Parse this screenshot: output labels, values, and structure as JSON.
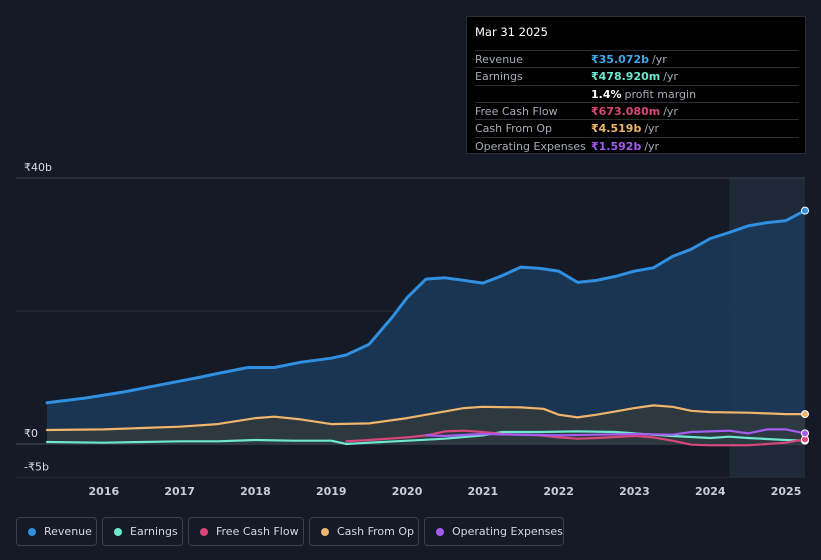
{
  "tooltip": {
    "date": "Mar 31 2025",
    "rows": [
      {
        "label": "Revenue",
        "value": "₹35.072b",
        "unit": "/yr",
        "color": "#3fa7ec"
      },
      {
        "label": "Earnings",
        "value": "₹478.920m",
        "unit": "/yr",
        "color": "#6ee7d0"
      },
      {
        "label": "",
        "value": "1.4%",
        "unit": "profit margin",
        "color": "#ffffff"
      },
      {
        "label": "Free Cash Flow",
        "value": "₹673.080m",
        "unit": "/yr",
        "color": "#d9467a"
      },
      {
        "label": "Cash From Op",
        "value": "₹4.519b",
        "unit": "/yr",
        "color": "#f0b56b"
      },
      {
        "label": "Operating Expenses",
        "value": "₹1.592b",
        "unit": "/yr",
        "color": "#a55cf0"
      }
    ]
  },
  "legend": [
    {
      "label": "Revenue",
      "color": "#2f8fe0"
    },
    {
      "label": "Earnings",
      "color": "#6ee7d0"
    },
    {
      "label": "Free Cash Flow",
      "color": "#d9467a"
    },
    {
      "label": "Cash From Op",
      "color": "#f0b56b"
    },
    {
      "label": "Operating Expenses",
      "color": "#a55cf0"
    }
  ],
  "chart_data": {
    "type": "line",
    "title": "",
    "unit": "₹ billions",
    "ylim": [
      -5,
      40
    ],
    "y_tick_labels": [
      "₹40b",
      "₹0",
      "-₹5b"
    ],
    "x_tick_labels": [
      "2016",
      "2017",
      "2018",
      "2019",
      "2020",
      "2021",
      "2022",
      "2023",
      "2024",
      "2025"
    ],
    "xlim": [
      2015.25,
      2025.25
    ],
    "highlight_from": 2024.25,
    "series": [
      {
        "name": "Revenue",
        "color": "#2f8fe0",
        "fill": true,
        "x": [
          2015.25,
          2015.75,
          2016.25,
          2016.75,
          2017.25,
          2017.5,
          2017.9,
          2018.25,
          2018.6,
          2019.0,
          2019.2,
          2019.5,
          2019.8,
          2020.0,
          2020.25,
          2020.5,
          2020.75,
          2021.0,
          2021.25,
          2021.5,
          2021.75,
          2022.0,
          2022.25,
          2022.5,
          2022.75,
          2023.0,
          2023.25,
          2023.5,
          2023.75,
          2024.0,
          2024.25,
          2024.5,
          2024.75,
          2025.0,
          2025.25
        ],
        "values": [
          6.2,
          6.9,
          7.8,
          8.9,
          10.0,
          10.6,
          11.5,
          11.5,
          12.3,
          12.9,
          13.4,
          15.0,
          19.0,
          22.0,
          24.8,
          25.0,
          24.6,
          24.2,
          25.3,
          26.6,
          26.4,
          26.0,
          24.3,
          24.6,
          25.2,
          26.0,
          26.5,
          28.2,
          29.3,
          30.9,
          31.8,
          32.8,
          33.3,
          33.6,
          35.1
        ]
      },
      {
        "name": "Cash From Op",
        "color": "#f0b56b",
        "fill": true,
        "x": [
          2015.25,
          2016.0,
          2016.5,
          2017.0,
          2017.5,
          2018.0,
          2018.25,
          2018.6,
          2019.0,
          2019.5,
          2020.0,
          2020.5,
          2020.75,
          2021.0,
          2021.5,
          2021.8,
          2022.0,
          2022.25,
          2022.5,
          2022.75,
          2023.0,
          2023.25,
          2023.5,
          2023.75,
          2024.0,
          2024.5,
          2024.75,
          2025.0,
          2025.25
        ],
        "values": [
          2.1,
          2.2,
          2.4,
          2.6,
          3.0,
          3.9,
          4.1,
          3.7,
          3.0,
          3.1,
          3.9,
          4.9,
          5.4,
          5.6,
          5.5,
          5.3,
          4.4,
          4.0,
          4.4,
          4.9,
          5.4,
          5.8,
          5.6,
          5.0,
          4.8,
          4.7,
          4.6,
          4.5,
          4.5
        ]
      },
      {
        "name": "Earnings",
        "color": "#6ee7d0",
        "fill": false,
        "x": [
          2015.25,
          2016.0,
          2016.5,
          2017.0,
          2017.5,
          2018.0,
          2018.5,
          2019.0,
          2019.2,
          2019.5,
          2020.0,
          2020.5,
          2021.0,
          2021.25,
          2021.75,
          2022.25,
          2022.75,
          2023.0,
          2023.5,
          2024.0,
          2024.25,
          2024.5,
          2025.0,
          2025.25
        ],
        "values": [
          0.3,
          0.2,
          0.3,
          0.4,
          0.4,
          0.6,
          0.5,
          0.5,
          0.0,
          0.2,
          0.5,
          0.8,
          1.3,
          1.8,
          1.8,
          1.9,
          1.8,
          1.6,
          1.2,
          0.9,
          1.1,
          0.9,
          0.6,
          0.5
        ]
      },
      {
        "name": "Free Cash Flow",
        "color": "#d9467a",
        "fill": false,
        "x": [
          2019.2,
          2019.5,
          2020.0,
          2020.25,
          2020.5,
          2020.75,
          2021.0,
          2021.25,
          2021.75,
          2022.0,
          2022.25,
          2022.5,
          2023.0,
          2023.25,
          2023.5,
          2023.75,
          2024.0,
          2024.5,
          2025.0,
          2025.25
        ],
        "values": [
          0.4,
          0.6,
          1.0,
          1.3,
          1.9,
          2.0,
          1.8,
          1.5,
          1.3,
          1.0,
          0.8,
          0.9,
          1.2,
          1.0,
          0.5,
          -0.1,
          -0.2,
          -0.2,
          0.2,
          0.7
        ]
      },
      {
        "name": "Operating Expenses",
        "color": "#a55cf0",
        "fill": false,
        "x": [
          2020.25,
          2020.5,
          2021.0,
          2021.5,
          2022.0,
          2022.5,
          2023.0,
          2023.5,
          2023.75,
          2024.0,
          2024.25,
          2024.5,
          2024.75,
          2025.0,
          2025.25
        ],
        "values": [
          1.3,
          1.2,
          1.5,
          1.4,
          1.3,
          1.4,
          1.5,
          1.4,
          1.8,
          1.9,
          2.0,
          1.6,
          2.2,
          2.2,
          1.6
        ]
      }
    ]
  }
}
